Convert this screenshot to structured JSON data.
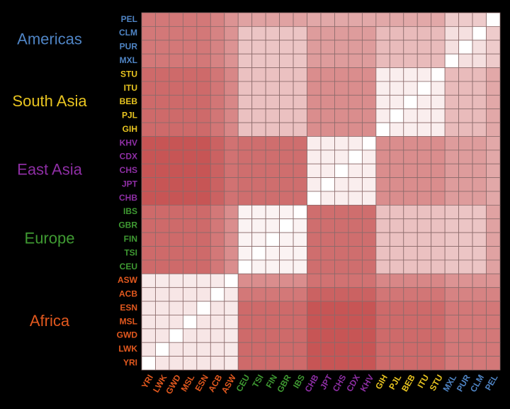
{
  "chart_data": {
    "type": "heatmap",
    "groups": [
      {
        "name": "Americas",
        "color": "#4f84c4",
        "rows": [
          "PEL",
          "CLM",
          "PUR",
          "MXL"
        ]
      },
      {
        "name": "South Asia",
        "color": "#e8c420",
        "rows": [
          "STU",
          "ITU",
          "BEB",
          "PJL",
          "GIH"
        ]
      },
      {
        "name": "East Asia",
        "color": "#8e2ea4",
        "rows": [
          "KHV",
          "CDX",
          "CHS",
          "JPT",
          "CHB"
        ]
      },
      {
        "name": "Europe",
        "color": "#3f9a32",
        "rows": [
          "IBS",
          "GBR",
          "FIN",
          "TSI",
          "CEU"
        ]
      },
      {
        "name": "Africa",
        "color": "#e2581e",
        "rows": [
          "ASW",
          "ACB",
          "ESN",
          "MSL",
          "GWD",
          "LWK",
          "YRI"
        ]
      }
    ],
    "columns": [
      "YRI",
      "LWK",
      "GWD",
      "MSL",
      "ESN",
      "ACB",
      "ASW",
      "CEU",
      "TSI",
      "FIN",
      "GBR",
      "IBS",
      "CHB",
      "JPT",
      "CHS",
      "CDX",
      "KHV",
      "GIH",
      "PJL",
      "BEB",
      "ITU",
      "STU",
      "MXL",
      "PUR",
      "CLM",
      "PEL"
    ],
    "zlim": [
      0,
      100
    ],
    "colors": [
      "#ffffff",
      "#bb3030"
    ],
    "values": [
      [
        65,
        65,
        65,
        65,
        65,
        60,
        52,
        45,
        45,
        45,
        45,
        45,
        42,
        42,
        42,
        42,
        42,
        42,
        42,
        42,
        42,
        42,
        25,
        25,
        25,
        0
      ],
      [
        65,
        65,
        65,
        65,
        65,
        60,
        52,
        28,
        28,
        28,
        28,
        28,
        48,
        48,
        48,
        48,
        48,
        33,
        33,
        33,
        33,
        33,
        15,
        15,
        0,
        25
      ],
      [
        65,
        65,
        65,
        65,
        65,
        60,
        52,
        28,
        28,
        28,
        28,
        28,
        48,
        48,
        48,
        48,
        48,
        33,
        33,
        33,
        33,
        33,
        15,
        0,
        15,
        25
      ],
      [
        65,
        65,
        65,
        65,
        65,
        60,
        52,
        28,
        28,
        28,
        28,
        28,
        48,
        48,
        48,
        48,
        48,
        33,
        33,
        33,
        33,
        33,
        0,
        15,
        15,
        25
      ],
      [
        72,
        72,
        72,
        72,
        72,
        66,
        58,
        30,
        30,
        30,
        30,
        30,
        55,
        55,
        55,
        55,
        55,
        8,
        8,
        8,
        8,
        0,
        33,
        33,
        33,
        42
      ],
      [
        72,
        72,
        72,
        72,
        72,
        66,
        58,
        30,
        30,
        30,
        30,
        30,
        55,
        55,
        55,
        55,
        55,
        8,
        8,
        8,
        0,
        8,
        33,
        33,
        33,
        42
      ],
      [
        72,
        72,
        72,
        72,
        72,
        66,
        58,
        30,
        30,
        30,
        30,
        30,
        55,
        55,
        55,
        55,
        55,
        8,
        8,
        0,
        8,
        8,
        33,
        33,
        33,
        42
      ],
      [
        72,
        72,
        72,
        72,
        72,
        66,
        58,
        30,
        30,
        30,
        30,
        30,
        55,
        55,
        55,
        55,
        55,
        8,
        0,
        8,
        8,
        8,
        33,
        33,
        33,
        42
      ],
      [
        72,
        72,
        72,
        72,
        72,
        66,
        58,
        30,
        30,
        30,
        30,
        30,
        55,
        55,
        55,
        55,
        55,
        0,
        8,
        8,
        8,
        8,
        33,
        33,
        33,
        42
      ],
      [
        82,
        82,
        82,
        82,
        82,
        76,
        68,
        70,
        70,
        70,
        70,
        70,
        8,
        8,
        8,
        8,
        0,
        55,
        55,
        55,
        55,
        55,
        48,
        48,
        48,
        42
      ],
      [
        82,
        82,
        82,
        82,
        82,
        76,
        68,
        70,
        70,
        70,
        70,
        70,
        8,
        8,
        8,
        0,
        8,
        55,
        55,
        55,
        55,
        55,
        48,
        48,
        48,
        42
      ],
      [
        82,
        82,
        82,
        82,
        82,
        76,
        68,
        70,
        70,
        70,
        70,
        70,
        8,
        8,
        0,
        8,
        8,
        55,
        55,
        55,
        55,
        55,
        48,
        48,
        48,
        42
      ],
      [
        82,
        82,
        82,
        82,
        82,
        76,
        68,
        70,
        70,
        70,
        70,
        70,
        8,
        0,
        8,
        8,
        8,
        55,
        55,
        55,
        55,
        55,
        48,
        48,
        48,
        42
      ],
      [
        82,
        82,
        82,
        82,
        82,
        76,
        68,
        70,
        70,
        70,
        70,
        70,
        0,
        8,
        8,
        8,
        8,
        55,
        55,
        55,
        55,
        55,
        48,
        48,
        48,
        42
      ],
      [
        72,
        72,
        72,
        72,
        72,
        65,
        55,
        6,
        6,
        6,
        6,
        0,
        70,
        70,
        70,
        70,
        70,
        30,
        30,
        30,
        30,
        30,
        28,
        28,
        28,
        45
      ],
      [
        72,
        72,
        72,
        72,
        72,
        65,
        55,
        6,
        6,
        6,
        0,
        6,
        70,
        70,
        70,
        70,
        70,
        30,
        30,
        30,
        30,
        30,
        28,
        28,
        28,
        45
      ],
      [
        72,
        72,
        72,
        72,
        72,
        65,
        55,
        6,
        6,
        0,
        6,
        6,
        70,
        70,
        70,
        70,
        70,
        30,
        30,
        30,
        30,
        30,
        28,
        28,
        28,
        45
      ],
      [
        72,
        72,
        72,
        72,
        72,
        65,
        55,
        6,
        0,
        6,
        6,
        6,
        70,
        70,
        70,
        70,
        70,
        30,
        30,
        30,
        30,
        30,
        28,
        28,
        28,
        45
      ],
      [
        72,
        72,
        72,
        72,
        72,
        65,
        55,
        0,
        6,
        6,
        6,
        6,
        70,
        70,
        70,
        70,
        70,
        30,
        30,
        30,
        30,
        30,
        28,
        28,
        28,
        45
      ],
      [
        10,
        10,
        10,
        10,
        10,
        10,
        0,
        55,
        55,
        55,
        55,
        55,
        68,
        68,
        68,
        68,
        68,
        58,
        58,
        58,
        58,
        58,
        52,
        52,
        52,
        52
      ],
      [
        12,
        12,
        12,
        12,
        12,
        0,
        10,
        65,
        65,
        65,
        65,
        65,
        76,
        76,
        76,
        76,
        76,
        66,
        66,
        66,
        66,
        66,
        60,
        60,
        60,
        60
      ],
      [
        12,
        12,
        12,
        12,
        0,
        12,
        10,
        72,
        72,
        72,
        72,
        72,
        82,
        82,
        82,
        82,
        82,
        72,
        72,
        72,
        72,
        72,
        65,
        65,
        65,
        65
      ],
      [
        12,
        12,
        12,
        0,
        12,
        12,
        10,
        72,
        72,
        72,
        72,
        72,
        82,
        82,
        82,
        82,
        82,
        72,
        72,
        72,
        72,
        72,
        65,
        65,
        65,
        65
      ],
      [
        12,
        12,
        0,
        12,
        12,
        12,
        10,
        72,
        72,
        72,
        72,
        72,
        82,
        82,
        82,
        82,
        82,
        72,
        72,
        72,
        72,
        72,
        65,
        65,
        65,
        65
      ],
      [
        12,
        0,
        12,
        12,
        12,
        12,
        10,
        72,
        72,
        72,
        72,
        72,
        82,
        82,
        82,
        82,
        82,
        72,
        72,
        72,
        72,
        72,
        65,
        65,
        65,
        65
      ],
      [
        0,
        12,
        12,
        12,
        12,
        12,
        10,
        72,
        72,
        72,
        72,
        72,
        82,
        82,
        82,
        82,
        82,
        72,
        72,
        72,
        72,
        72,
        65,
        65,
        65,
        65
      ]
    ]
  }
}
